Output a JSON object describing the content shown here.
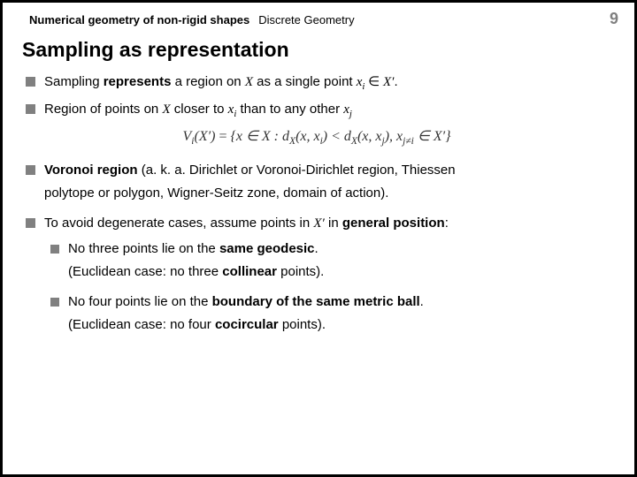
{
  "header": {
    "left": "Numerical geometry of non-rigid shapes",
    "right": "Discrete Geometry",
    "page": "9"
  },
  "title": "Sampling as representation",
  "b1": {
    "pre": "Sampling ",
    "bold": "represents",
    "post_a": " a region on ",
    "sym_X": "X",
    "post_b": " as a single point ",
    "sym_xi": "x",
    "sym_xi_sub": "i",
    "belongs": " ∈ ",
    "sym_Xp": "X′",
    "dot": "."
  },
  "b2": {
    "pre": "Region of points on ",
    "sym_X": "X",
    "mid_a": " closer to ",
    "sym_xi": "x",
    "sym_xi_sub": "i",
    "mid_b": " than to any other ",
    "sym_xj": "x",
    "sym_xj_sub": "j"
  },
  "formula": {
    "lhs_V": "V",
    "lhs_sub": "i",
    "lhs_arg": "(X′)",
    "eq": "   =   ",
    "rhs": "{x ∈ X : d",
    "dXsub": "X",
    "rhs2": "(x, x",
    "rhs2sub": "i",
    "rhs3": ") < d",
    "rhs4": "(x, x",
    "rhs4sub": "j",
    "rhs5": "), x",
    "rhs5sub": "j≠i",
    "rhs6": " ∈ X′}"
  },
  "b3": {
    "bold": "Voronoi region",
    "rest": " (a. k. a. Dirichlet or Voronoi-Dirichlet region, Thiessen",
    "line2": "polytope or polygon, Wigner-Seitz zone, domain of action)."
  },
  "b4": {
    "pre": "To avoid degenerate cases, assume points in ",
    "sym_Xp": "X′",
    "mid": " in ",
    "bold": "general position",
    "post": ":"
  },
  "b5": {
    "pre": "No three points lie on the ",
    "bold": "same geodesic",
    "post": ".",
    "sub_pre": "(Euclidean case: no three ",
    "sub_bold": "collinear",
    "sub_post": " points)."
  },
  "b6": {
    "pre": "No four points lie on the ",
    "bold": "boundary of the same metric ball",
    "post": ".",
    "sub_pre": "(Euclidean case: no four ",
    "sub_bold": "cocircular",
    "sub_post": " points)."
  },
  "style": {
    "bullet_color": "#808080",
    "page_color": "#808080",
    "bg": "#ffffff",
    "text": "#000000"
  }
}
